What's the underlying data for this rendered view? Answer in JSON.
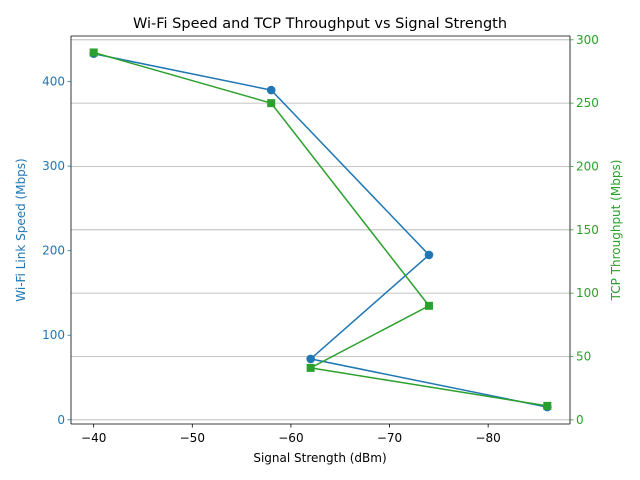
{
  "chart_data": {
    "type": "line",
    "title": "Wi-Fi Speed and TCP Throughput vs Signal Strength",
    "xlabel": "Signal Strength (dBm)",
    "ylabel_left": "Wi-Fi Link Speed (Mbps)",
    "ylabel_right": "TCP Throughput (Mbps)",
    "x_inverted": true,
    "xlim": [
      -37.7,
      -88.3
    ],
    "ylim_left": [
      -5,
      454
    ],
    "ylim_right": [
      -3.3,
      303
    ],
    "x_ticks": [
      -40,
      -50,
      -60,
      -70,
      -80
    ],
    "x_tick_labels": [
      "−40",
      "−50",
      "−60",
      "−70",
      "−80"
    ],
    "y_left_ticks": [
      0,
      100,
      200,
      300,
      400
    ],
    "y_left_tick_labels": [
      "0",
      "100",
      "200",
      "300",
      "400"
    ],
    "y_right_ticks": [
      0,
      50,
      100,
      150,
      200,
      250,
      300
    ],
    "y_right_tick_labels": [
      "0",
      "50",
      "100",
      "150",
      "200",
      "250",
      "300"
    ],
    "grid": "horizontal lines at right-axis ticks",
    "colors": {
      "left": "#1f77b4",
      "right": "#2ca02c"
    },
    "series": [
      {
        "axis": "left",
        "marker": "circle",
        "color": "#1f77b4",
        "x": [
          -40,
          -58,
          -74,
          -62,
          -86
        ],
        "y": [
          433,
          390,
          195,
          72,
          15
        ]
      },
      {
        "axis": "right",
        "marker": "square",
        "color": "#2ca02c",
        "x": [
          -40,
          -58,
          -74,
          -62,
          -86
        ],
        "y": [
          290,
          250,
          90,
          41,
          11
        ]
      }
    ]
  }
}
